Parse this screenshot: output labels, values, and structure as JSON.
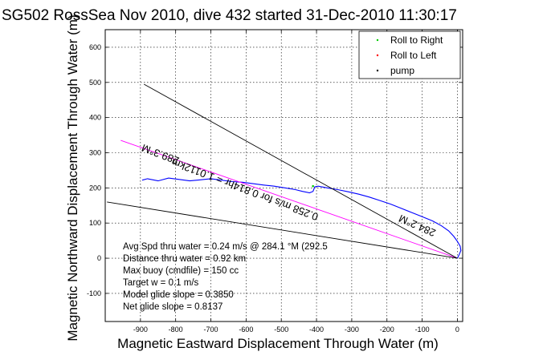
{
  "chart_data": {
    "type": "line",
    "title": "SG502 RossSea Nov 2010, dive 432 started 31-Dec-2010 11:30:17",
    "xlabel": "Magnetic Eastward Displacement Through Water (m)",
    "ylabel": "Magnetic Northward Displacement Through Water (m)",
    "xlim": [
      -1000,
      15
    ],
    "ylim": [
      -180,
      650
    ],
    "xticks": [
      -900,
      -800,
      -700,
      -600,
      -500,
      -400,
      -300,
      -200,
      -100,
      0
    ],
    "yticks": [
      -100,
      0,
      100,
      200,
      300,
      400,
      500,
      600
    ],
    "grid": true,
    "legend": {
      "placement": "top-right",
      "entries": [
        {
          "label": "Roll to Right",
          "color": "#00cc00"
        },
        {
          "label": "Roll to Left",
          "color": "#ff0000"
        },
        {
          "label": "pump",
          "color": "#000000"
        }
      ]
    },
    "series": [
      {
        "color": "#0000ff",
        "x": [
          0,
          5,
          10,
          8,
          0,
          -10,
          -25,
          -45,
          -70,
          -100,
          -130,
          -160,
          -190,
          -220,
          -250,
          -280,
          -310,
          -340,
          -370,
          -395,
          -405,
          -410,
          -420,
          -440,
          -460,
          -490,
          -520,
          -550,
          -580,
          -610,
          -640,
          -670,
          -700,
          -730,
          -760,
          -790,
          -820,
          -850,
          -880,
          -895
        ],
        "y": [
          0,
          10,
          22,
          34,
          48,
          62,
          78,
          92,
          106,
          118,
          130,
          142,
          154,
          164,
          174,
          182,
          189,
          195,
          200,
          205,
          203,
          190,
          186,
          190,
          195,
          200,
          205,
          208,
          212,
          216,
          218,
          222,
          226,
          223,
          220,
          224,
          228,
          220,
          226,
          222
        ]
      },
      {
        "color": "#ff00ff",
        "x": [
          0,
          -956
        ],
        "y": [
          0,
          335
        ]
      },
      {
        "color": "#000000",
        "x": [
          0,
          -890
        ],
        "y": [
          0,
          495
        ]
      },
      {
        "color": "#000000",
        "x": [
          0,
          -995
        ],
        "y": [
          0,
          160
        ]
      },
      {
        "color": "#00cc00",
        "x": [
          -410
        ],
        "y": [
          205
        ]
      }
    ],
    "annotations": [
      {
        "text": "289.3°M",
        "x": -840,
        "y": 305,
        "angle": 21
      },
      {
        "text": "0.258 m/s for 0.814hr = 1.0112km",
        "x": -600,
        "y": 205,
        "angle": 21
      },
      {
        "text": "284.2°M",
        "x": -110,
        "y": 102,
        "angle": 24
      }
    ],
    "stats": [
      "Avg Spd thru water =  0.24 m/s @ 284.1   °M (292.5",
      "Distance thru water =  0.92 km",
      "Max buoy (cmdfile) = 150 cc",
      "Target w = 0.1 m/s",
      "Model glide slope = 0.3850",
      "Net glide slope = 0.8137"
    ]
  }
}
